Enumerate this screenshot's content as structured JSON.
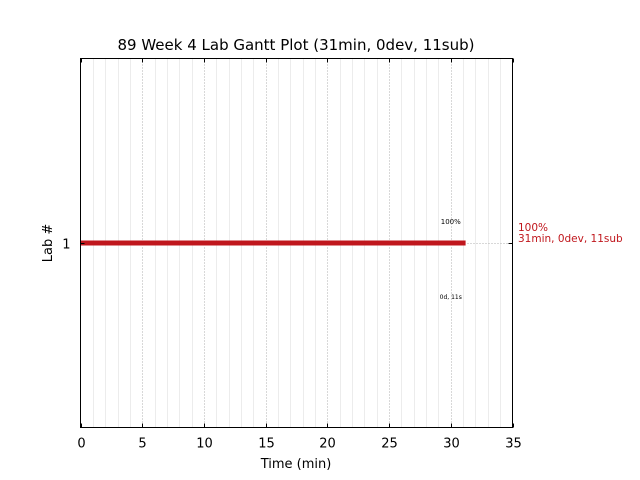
{
  "chart_data": {
    "type": "bar",
    "orientation": "horizontal",
    "title": "89 Week 4 Lab Gantt Plot (31min, 0dev, 11sub)",
    "xlabel": "Time (min)",
    "ylabel": "Lab #",
    "xlim": [
      0,
      35
    ],
    "xticks": [
      0,
      5,
      10,
      15,
      20,
      25,
      30,
      35
    ],
    "ytick_labels": [
      "1"
    ],
    "grid": true,
    "bars": [
      {
        "lab": "1",
        "start": 0,
        "end": 31.2,
        "color": "#c0171d",
        "above_label": "100%",
        "below_label": "0d, 11s"
      }
    ],
    "side_annotation": {
      "line1": "100%",
      "line2": "31min, 0dev, 11sub",
      "color": "#c0171d"
    }
  }
}
